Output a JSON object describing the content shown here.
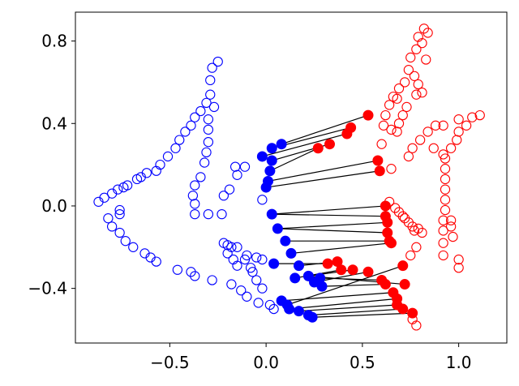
{
  "chart_data": {
    "type": "scatter",
    "title": "",
    "xlabel": "",
    "ylabel": "",
    "xlim": [
      -0.99,
      1.25
    ],
    "ylim": [
      -0.665,
      0.94
    ],
    "xticks": [
      -0.5,
      0.0,
      0.5,
      1.0
    ],
    "xtick_labels": [
      "−0.5",
      "0.0",
      "0.5",
      "1.0"
    ],
    "yticks": [
      -0.4,
      0.0,
      0.4,
      0.8
    ],
    "ytick_labels": [
      "−0.4",
      "0.0",
      "0.4",
      "0.8"
    ],
    "grid": false,
    "legend": "none",
    "colors": {
      "blue": "#0000ff",
      "red": "#ff0000",
      "line": "#000000",
      "axes": "#000000"
    },
    "series": [
      {
        "color": "#0000ff",
        "filled": false,
        "points": [
          [
            -0.87,
            0.02
          ],
          [
            -0.84,
            0.04
          ],
          [
            -0.8,
            0.06
          ],
          [
            -0.77,
            0.08
          ],
          [
            -0.74,
            0.09
          ],
          [
            -0.72,
            0.1
          ],
          [
            -0.67,
            0.13
          ],
          [
            -0.65,
            0.14
          ],
          [
            -0.62,
            0.16
          ],
          [
            -0.57,
            0.17
          ],
          [
            -0.55,
            0.2
          ],
          [
            -0.51,
            0.24
          ],
          [
            -0.47,
            0.28
          ],
          [
            -0.45,
            0.32
          ],
          [
            -0.42,
            0.36
          ],
          [
            -0.39,
            0.39
          ],
          [
            -0.37,
            0.43
          ],
          [
            -0.34,
            0.46
          ],
          [
            -0.31,
            0.5
          ],
          [
            -0.29,
            0.54
          ],
          [
            -0.29,
            0.61
          ],
          [
            -0.28,
            0.67
          ],
          [
            -0.25,
            0.7
          ],
          [
            -0.27,
            0.48
          ],
          [
            -0.3,
            0.42
          ],
          [
            -0.3,
            0.37
          ],
          [
            -0.3,
            0.31
          ],
          [
            -0.31,
            0.26
          ],
          [
            -0.32,
            0.21
          ],
          [
            -0.34,
            0.14
          ],
          [
            -0.37,
            0.1
          ],
          [
            -0.38,
            0.05
          ],
          [
            -0.37,
            0.01
          ],
          [
            -0.37,
            -0.04
          ],
          [
            -0.3,
            -0.04
          ],
          [
            -0.23,
            -0.04
          ],
          [
            -0.22,
            0.05
          ],
          [
            -0.15,
            0.15
          ],
          [
            -0.11,
            0.19
          ],
          [
            -0.16,
            0.19
          ],
          [
            -0.19,
            0.08
          ],
          [
            -0.02,
            0.03
          ],
          [
            -0.76,
            -0.02
          ],
          [
            -0.76,
            -0.04
          ],
          [
            -0.82,
            -0.06
          ],
          [
            -0.8,
            -0.1
          ],
          [
            -0.76,
            -0.13
          ],
          [
            -0.73,
            -0.17
          ],
          [
            -0.69,
            -0.2
          ],
          [
            -0.63,
            -0.23
          ],
          [
            -0.6,
            -0.25
          ],
          [
            -0.57,
            -0.27
          ],
          [
            -0.46,
            -0.31
          ],
          [
            -0.39,
            -0.32
          ],
          [
            -0.37,
            -0.34
          ],
          [
            -0.28,
            -0.36
          ],
          [
            -0.18,
            -0.38
          ],
          [
            -0.13,
            -0.41
          ],
          [
            -0.1,
            -0.44
          ],
          [
            -0.04,
            -0.47
          ],
          [
            -0.22,
            -0.18
          ],
          [
            -0.2,
            -0.19
          ],
          [
            -0.18,
            -0.2
          ],
          [
            -0.15,
            -0.2
          ],
          [
            -0.2,
            -0.23
          ],
          [
            -0.17,
            -0.26
          ],
          [
            -0.11,
            -0.26
          ],
          [
            -0.15,
            -0.29
          ],
          [
            -0.08,
            -0.3
          ],
          [
            -0.05,
            -0.36
          ],
          [
            -0.1,
            -0.24
          ],
          [
            -0.05,
            -0.25
          ],
          [
            -0.02,
            -0.26
          ],
          [
            -0.07,
            -0.32
          ],
          [
            -0.02,
            -0.4
          ],
          [
            0.02,
            -0.48
          ],
          [
            0.04,
            -0.5
          ]
        ]
      },
      {
        "color": "#ff0000",
        "filled": false,
        "points": [
          [
            0.82,
            0.86
          ],
          [
            0.79,
            0.82
          ],
          [
            0.84,
            0.84
          ],
          [
            0.81,
            0.79
          ],
          [
            0.78,
            0.76
          ],
          [
            0.75,
            0.72
          ],
          [
            0.83,
            0.71
          ],
          [
            0.74,
            0.66
          ],
          [
            0.77,
            0.63
          ],
          [
            0.79,
            0.59
          ],
          [
            0.81,
            0.55
          ],
          [
            0.78,
            0.54
          ],
          [
            0.72,
            0.6
          ],
          [
            0.69,
            0.57
          ],
          [
            0.66,
            0.53
          ],
          [
            0.68,
            0.52
          ],
          [
            0.73,
            0.48
          ],
          [
            0.71,
            0.44
          ],
          [
            0.69,
            0.4
          ],
          [
            0.68,
            0.36
          ],
          [
            0.64,
            0.49
          ],
          [
            0.62,
            0.44
          ],
          [
            0.61,
            0.39
          ],
          [
            0.65,
            0.37
          ],
          [
            0.6,
            0.3
          ],
          [
            0.65,
            0.18
          ],
          [
            0.74,
            0.24
          ],
          [
            0.76,
            0.28
          ],
          [
            0.8,
            0.32
          ],
          [
            0.84,
            0.36
          ],
          [
            0.88,
            0.39
          ],
          [
            0.92,
            0.39
          ],
          [
            0.87,
            0.28
          ],
          [
            0.92,
            0.25
          ],
          [
            0.93,
            0.23
          ],
          [
            0.93,
            0.18
          ],
          [
            0.93,
            0.13
          ],
          [
            0.93,
            0.08
          ],
          [
            0.93,
            0.03
          ],
          [
            0.93,
            -0.02
          ],
          [
            0.92,
            -0.07
          ],
          [
            0.92,
            -0.12
          ],
          [
            0.92,
            -0.18
          ],
          [
            0.92,
            -0.24
          ],
          [
            1.0,
            -0.26
          ],
          [
            1.0,
            -0.3
          ],
          [
            0.97,
            -0.15
          ],
          [
            0.96,
            -0.1
          ],
          [
            0.96,
            -0.07
          ],
          [
            0.96,
            0.28
          ],
          [
            0.99,
            0.32
          ],
          [
            1.0,
            0.36
          ],
          [
            1.04,
            0.39
          ],
          [
            1.07,
            0.43
          ],
          [
            1.11,
            0.44
          ],
          [
            1.0,
            0.42
          ],
          [
            0.64,
            0.02
          ],
          [
            0.67,
            -0.01
          ],
          [
            0.69,
            -0.03
          ],
          [
            0.71,
            -0.05
          ],
          [
            0.72,
            -0.06
          ],
          [
            0.74,
            -0.08
          ],
          [
            0.76,
            -0.1
          ],
          [
            0.77,
            -0.12
          ],
          [
            0.79,
            -0.11
          ],
          [
            0.81,
            -0.13
          ],
          [
            0.78,
            -0.2
          ],
          [
            0.75,
            -0.24
          ],
          [
            0.76,
            -0.55
          ],
          [
            0.78,
            -0.58
          ]
        ]
      },
      {
        "color": "#0000ff",
        "filled": true,
        "points": [
          [
            0.08,
            0.3
          ],
          [
            0.03,
            0.28
          ],
          [
            -0.02,
            0.24
          ],
          [
            0.03,
            0.22
          ],
          [
            0.02,
            0.17
          ],
          [
            0.01,
            0.12
          ],
          [
            0.0,
            0.09
          ],
          [
            0.03,
            -0.04
          ],
          [
            0.06,
            -0.11
          ],
          [
            0.1,
            -0.17
          ],
          [
            0.13,
            -0.23
          ],
          [
            0.04,
            -0.28
          ],
          [
            0.17,
            -0.29
          ],
          [
            0.15,
            -0.35
          ],
          [
            0.22,
            -0.34
          ],
          [
            0.25,
            -0.37
          ],
          [
            0.28,
            -0.35
          ],
          [
            0.29,
            -0.39
          ],
          [
            0.08,
            -0.46
          ],
          [
            0.12,
            -0.5
          ],
          [
            0.17,
            -0.51
          ],
          [
            0.22,
            -0.53
          ],
          [
            0.24,
            -0.54
          ],
          [
            0.11,
            -0.48
          ]
        ]
      },
      {
        "color": "#ff0000",
        "filled": true,
        "points": [
          [
            0.53,
            0.44
          ],
          [
            0.44,
            0.38
          ],
          [
            0.42,
            0.35
          ],
          [
            0.33,
            0.3
          ],
          [
            0.27,
            0.28
          ],
          [
            0.58,
            0.22
          ],
          [
            0.59,
            0.17
          ],
          [
            0.62,
            0.0
          ],
          [
            0.62,
            -0.05
          ],
          [
            0.63,
            -0.08
          ],
          [
            0.63,
            -0.13
          ],
          [
            0.64,
            -0.17
          ],
          [
            0.65,
            -0.18
          ],
          [
            0.32,
            -0.28
          ],
          [
            0.37,
            -0.27
          ],
          [
            0.39,
            -0.31
          ],
          [
            0.45,
            -0.31
          ],
          [
            0.53,
            -0.32
          ],
          [
            0.6,
            -0.36
          ],
          [
            0.62,
            -0.38
          ],
          [
            0.66,
            -0.42
          ],
          [
            0.68,
            -0.45
          ],
          [
            0.68,
            -0.48
          ],
          [
            0.71,
            -0.5
          ],
          [
            0.76,
            -0.52
          ],
          [
            0.71,
            -0.29
          ],
          [
            0.72,
            -0.38
          ]
        ]
      }
    ],
    "segments": [
      [
        [
          0.08,
          0.3
        ],
        [
          0.53,
          0.44
        ]
      ],
      [
        [
          0.03,
          0.28
        ],
        [
          0.44,
          0.38
        ]
      ],
      [
        [
          -0.02,
          0.24
        ],
        [
          0.42,
          0.35
        ]
      ],
      [
        [
          0.03,
          0.22
        ],
        [
          0.33,
          0.3
        ]
      ],
      [
        [
          0.02,
          0.17
        ],
        [
          0.27,
          0.28
        ]
      ],
      [
        [
          0.01,
          0.12
        ],
        [
          0.58,
          0.22
        ]
      ],
      [
        [
          0.0,
          0.09
        ],
        [
          0.59,
          0.17
        ]
      ],
      [
        [
          0.03,
          -0.04
        ],
        [
          0.62,
          0.0
        ]
      ],
      [
        [
          0.03,
          -0.04
        ],
        [
          0.62,
          -0.05
        ]
      ],
      [
        [
          0.06,
          -0.11
        ],
        [
          0.63,
          -0.08
        ]
      ],
      [
        [
          0.06,
          -0.11
        ],
        [
          0.63,
          -0.13
        ]
      ],
      [
        [
          0.1,
          -0.17
        ],
        [
          0.64,
          -0.17
        ]
      ],
      [
        [
          0.13,
          -0.23
        ],
        [
          0.65,
          -0.18
        ]
      ],
      [
        [
          0.04,
          -0.28
        ],
        [
          0.32,
          -0.28
        ]
      ],
      [
        [
          0.17,
          -0.29
        ],
        [
          0.37,
          -0.27
        ]
      ],
      [
        [
          0.15,
          -0.35
        ],
        [
          0.39,
          -0.31
        ]
      ],
      [
        [
          0.22,
          -0.34
        ],
        [
          0.45,
          -0.31
        ]
      ],
      [
        [
          0.25,
          -0.37
        ],
        [
          0.53,
          -0.32
        ]
      ],
      [
        [
          0.28,
          -0.35
        ],
        [
          0.6,
          -0.36
        ]
      ],
      [
        [
          0.29,
          -0.39
        ],
        [
          0.62,
          -0.38
        ]
      ],
      [
        [
          0.08,
          -0.46
        ],
        [
          0.66,
          -0.42
        ]
      ],
      [
        [
          0.12,
          -0.5
        ],
        [
          0.68,
          -0.45
        ]
      ],
      [
        [
          0.17,
          -0.51
        ],
        [
          0.68,
          -0.48
        ]
      ],
      [
        [
          0.22,
          -0.53
        ],
        [
          0.71,
          -0.5
        ]
      ],
      [
        [
          0.24,
          -0.54
        ],
        [
          0.76,
          -0.52
        ]
      ],
      [
        [
          0.11,
          -0.48
        ],
        [
          0.71,
          -0.29
        ]
      ],
      [
        [
          0.22,
          -0.34
        ],
        [
          0.72,
          -0.38
        ]
      ]
    ]
  }
}
